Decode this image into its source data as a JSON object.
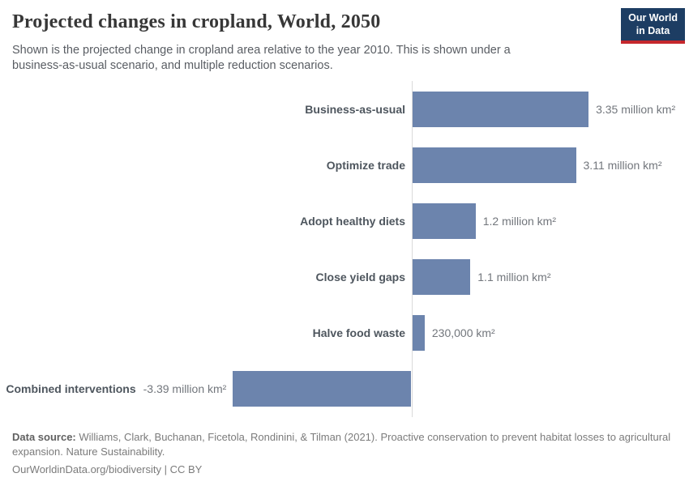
{
  "header": {
    "title": "Projected changes in cropland, World, 2050",
    "subtitle": "Shown is the projected change in cropland area relative to the year 2010. This is shown under a business-as-usual scenario, and multiple reduction scenarios.",
    "logo": {
      "line1": "Our World",
      "line2": "in Data",
      "bg_color": "#1d3d63",
      "accent_color": "#c5272d"
    }
  },
  "chart_data": {
    "type": "bar",
    "orientation": "horizontal",
    "title": "Projected changes in cropland, World, 2050",
    "xlabel": "",
    "ylabel": "",
    "unit": "million km²",
    "categories": [
      "Business-as-usual",
      "Optimize trade",
      "Adopt healthy diets",
      "Close yield gaps",
      "Halve food waste",
      "Combined interventions"
    ],
    "values": [
      3.35,
      3.11,
      1.2,
      1.1,
      0.23,
      -3.39
    ],
    "value_labels": [
      "3.35 million km²",
      "3.11 million km²",
      "1.2 million km²",
      "1.1 million km²",
      "230,000 km²",
      "-3.39 million km²"
    ],
    "xlim": [
      -3.39,
      3.35
    ],
    "grid": false,
    "legend": false,
    "bar_color": "#6c84ad",
    "axis_color": "#dadada"
  },
  "footer": {
    "source_label": "Data source:",
    "source_text": " Williams, Clark, Buchanan, Ficetola, Rondinini, & Tilman (2021). Proactive conservation to prevent habitat losses to agricultural expansion. Nature Sustainability.",
    "link_line": "OurWorldinData.org/biodiversity | CC BY"
  }
}
